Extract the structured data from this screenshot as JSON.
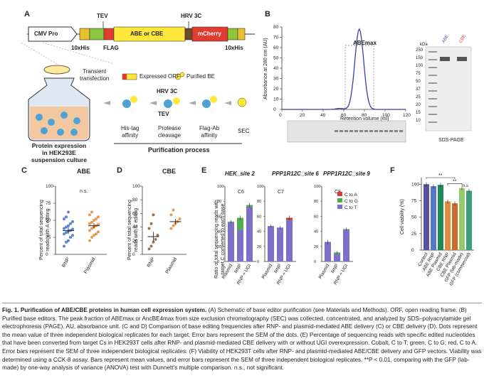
{
  "panels": {
    "A": {
      "letter": "A",
      "construct": {
        "cmv": "CMV Pro",
        "tev": "TEV",
        "hrv": "HRV 3C",
        "orf": "ABE or CBE",
        "mcherry": "mCherry",
        "his_left": "10xHis",
        "flag": "FLAG",
        "his_right": "10xHis"
      },
      "transient": "Transient\ntransfection",
      "legend_expressed": "Expressed ORF",
      "legend_purified": "Purified BE",
      "hrv_step": "HRV 3C",
      "tev_step": "TEV",
      "steps": [
        "His-tag\naffinity",
        "Protease\ncleavage",
        "Flag-Ab\naffinity",
        "SEC"
      ],
      "process_title": "Purification process",
      "expression_label": "Protein expression\nin HEK293E\nsuspension culture"
    },
    "B": {
      "letter": "B",
      "ylabel": "Absorbance at 280 nm (AU)",
      "xlabel": "Retention volume (ml)",
      "peak_label": "ABEmax",
      "yticks": [
        "0",
        "10",
        "20",
        "30",
        "40",
        "50",
        "60",
        "70",
        "80"
      ],
      "xticks": [
        "0",
        "20",
        "40",
        "60",
        "80",
        "100",
        "120"
      ],
      "kda": "kDa",
      "ladder": [
        "250",
        "150",
        "100",
        "75",
        "50",
        "37",
        "25",
        "20",
        "15",
        "10"
      ],
      "lane_abe": "ABE",
      "lane_cbe": "CBE",
      "sds": "SDS-PAGE"
    },
    "C": {
      "letter": "C",
      "title": "ABE",
      "ylabel": "Percent of total sequencing\nreads with A editing",
      "yticks": [
        "0",
        "25",
        "50",
        "75",
        "100"
      ],
      "categories": [
        "RNP",
        "Plasmid"
      ],
      "ns": "n.s."
    },
    "D": {
      "letter": "D",
      "title": "CBE",
      "ylabel": "Percent of total sequencing\nreads with C editing",
      "yticks": [
        "0",
        "20",
        "40",
        "60",
        "80",
        "100"
      ],
      "categories": [
        "RNP",
        "Plasmid"
      ]
    },
    "E": {
      "letter": "E",
      "sites": [
        "HEK_site 2",
        "PPP1R12C_site 6",
        "PPP1R12C_site 9"
      ],
      "positions": [
        "C6",
        "C7",
        "C8"
      ],
      "ylabel": "Ratio of total sequencing reads with\ntarget C converted to each base",
      "yticks": [
        "0",
        "20",
        "40",
        "60",
        "80",
        "100"
      ],
      "categories": [
        "Plasmid",
        "RNP",
        "RNP + UGI"
      ],
      "legend": [
        "C to A",
        "C to G",
        "C to T"
      ],
      "colors": {
        "CtoA": "#d9393b",
        "CtoG": "#4caf50",
        "CtoT": "#7b6fc7"
      }
    },
    "F": {
      "letter": "F",
      "ylabel": "Cell viability (%)",
      "yticks": [
        "0",
        "25",
        "50",
        "75",
        "100"
      ],
      "categories": [
        "Control",
        "ABE RNP",
        "ABE Plasmid",
        "CBE RNP",
        "CBE Plasmid",
        "GFP (lab-made)",
        "GFP (commercial)"
      ],
      "sig1": "**",
      "sig2": "**",
      "ns": "n.s"
    }
  },
  "chart_data": [
    {
      "type": "scatter",
      "panel": "C",
      "title": "ABE",
      "ylabel": "Percent of total sequencing reads with A editing",
      "ylim": [
        0,
        100
      ],
      "categories": [
        "RNP",
        "Plasmid"
      ],
      "means": [
        35,
        42
      ],
      "sem": [
        5,
        4
      ],
      "points": {
        "RNP": [
          12,
          18,
          20,
          25,
          28,
          30,
          32,
          34,
          35,
          37,
          38,
          40,
          42,
          45,
          48,
          52,
          55,
          62
        ],
        "Plasmid": [
          20,
          25,
          28,
          30,
          33,
          35,
          38,
          40,
          42,
          44,
          45,
          47,
          50,
          52,
          55,
          58,
          62
        ]
      }
    },
    {
      "type": "scatter",
      "panel": "D",
      "title": "CBE",
      "ylabel": "Percent of total sequencing reads with C editing",
      "ylim": [
        0,
        100
      ],
      "categories": [
        "RNP",
        "Plasmid"
      ],
      "means": [
        26,
        48
      ],
      "sem": [
        7,
        4
      ],
      "points": {
        "RNP": [
          8,
          12,
          18,
          22,
          28,
          38,
          45,
          58
        ],
        "Plasmid": [
          38,
          42,
          45,
          48,
          52,
          58,
          65
        ]
      }
    },
    {
      "type": "bar",
      "panel": "E",
      "ylabel": "Ratio of total sequencing reads with target C converted to each base",
      "ylim": [
        0,
        100
      ],
      "categories": [
        "Plasmid",
        "RNP",
        "RNP + UGI"
      ],
      "groups": [
        {
          "site": "HEK_site 2",
          "position": "C6",
          "CtoT": [
            52,
            42,
            73
          ],
          "CtoG": [
            1,
            16,
            2
          ],
          "CtoA": [
            0,
            0,
            0
          ],
          "err": [
            2,
            3,
            3
          ]
        },
        {
          "site": "PPP1R12C_site 6",
          "position": "C7",
          "CtoT": [
            47,
            45,
            55
          ],
          "CtoG": [
            0,
            0,
            0
          ],
          "CtoA": [
            0,
            0,
            3
          ],
          "err": [
            2,
            2,
            3
          ]
        },
        {
          "site": "PPP1R12C_site 9",
          "position": "C8",
          "CtoT": [
            26,
            10,
            42
          ],
          "CtoG": [
            0,
            2,
            1
          ],
          "CtoA": [
            0,
            0,
            0
          ],
          "err": [
            3,
            2,
            2
          ]
        }
      ]
    },
    {
      "type": "bar",
      "panel": "F",
      "ylabel": "Cell viability (%)",
      "ylim": [
        0,
        110
      ],
      "categories": [
        "Control",
        "ABE RNP",
        "ABE Plasmid",
        "CBE RNP",
        "CBE Plasmid",
        "GFP (lab-made)",
        "GFP (commercial)"
      ],
      "values": [
        100,
        97,
        99,
        74,
        71,
        94,
        90
      ],
      "colors": [
        "#5b4fa3",
        "#5577c9",
        "#1e8a5a",
        "#e58a3c",
        "#d06a2a",
        "#95c96a",
        "#3d9f7e"
      ]
    }
  ],
  "caption": {
    "bold_lead": "Fig. 1. Purification of ABE/CBE proteins in human cell expression system.",
    "body": " (A) Schematic of base editor purification (see Materials and Methods). ORF, open reading frame. (B) Purified base editors. The peak fraction of ABEmax or AncBE4max from size exclusion chromatography (SEC) was collected, concentrated, and analyzed by SDS–polyacrylamide gel electrophoresis (PAGE). AU, absorbance unit. (C and D) Comparison of base editing frequencies after RNP- and plasmid-mediated ABE delivery (C) or CBE delivery (D). Dots represent the mean value of three independent biological replicates for each target. Error bars represent the SEM of the dots. (E) Percentage of sequencing reads with specific edited nucleotides that have been converted from target Cs in HEK293T cells after RNP- and plasmid-mediated CBE delivery with or without UGI overexpression. Cobalt, C to T; green, C to G; red, C to A. Error bars represent the SEM of three independent biological replicates. (F) Viability of HEK293T cells after RNP- and plasmid-mediated ABE/CBE delivery and GFP vectors. Viability was determined using a CCK-8 assay. Bars represent mean values, and error bars represent the SEM of three independent biological replicates. **P < 0.01, comparing with the GFP (lab-made) by one-way analysis of variance (ANOVA) test with Dunnett's multiple comparison. n.s., not significant."
  }
}
